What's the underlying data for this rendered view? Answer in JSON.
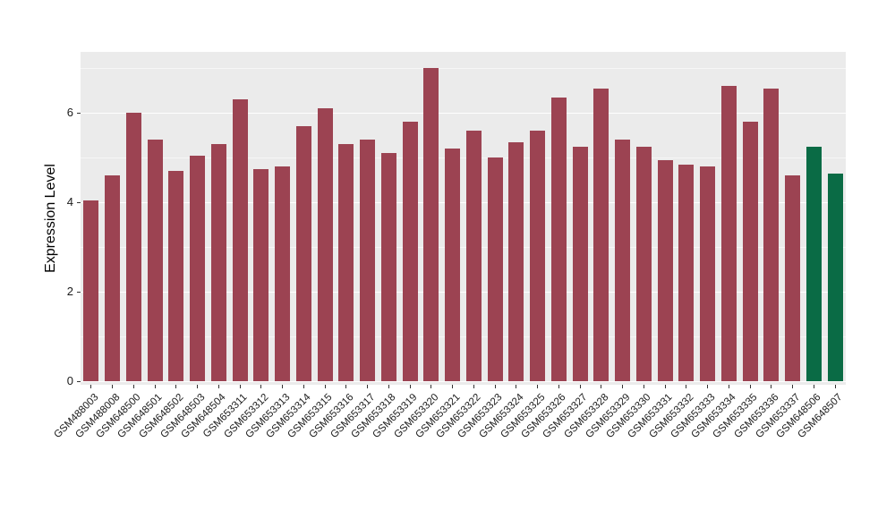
{
  "chart_data": {
    "type": "bar",
    "title": "",
    "xlabel": "",
    "ylabel": "Expression Level",
    "ylim": [
      0,
      7.36
    ],
    "yticks": [
      0,
      2,
      4,
      6
    ],
    "minor_yticks": [
      1,
      3,
      5,
      7
    ],
    "grid": true,
    "legend": "none",
    "panel_background": "#ebebeb",
    "grid_color_major": "#ffffff",
    "grid_color_minor": "rgba(255,255,255,0.55)",
    "bar_color_default": "#9c4352",
    "bar_color_highlight": "#0a6b45",
    "highlight_categories": [
      "GSM648506",
      "GSM648507"
    ],
    "categories": [
      "GSM488003",
      "GSM488008",
      "GSM648500",
      "GSM648501",
      "GSM648502",
      "GSM648503",
      "GSM648504",
      "GSM653311",
      "GSM653312",
      "GSM653313",
      "GSM653314",
      "GSM653315",
      "GSM653316",
      "GSM653317",
      "GSM653318",
      "GSM653319",
      "GSM653320",
      "GSM653321",
      "GSM653322",
      "GSM653323",
      "GSM653324",
      "GSM653325",
      "GSM653326",
      "GSM653327",
      "GSM653328",
      "GSM653329",
      "GSM653330",
      "GSM653331",
      "GSM653332",
      "GSM653333",
      "GSM653334",
      "GSM653335",
      "GSM653336",
      "GSM653337",
      "GSM648506",
      "GSM648507"
    ],
    "values": [
      4.05,
      4.6,
      6.0,
      5.4,
      4.7,
      5.05,
      5.3,
      6.3,
      4.75,
      4.8,
      5.7,
      6.1,
      5.3,
      5.4,
      5.1,
      5.8,
      7.0,
      5.2,
      5.6,
      5.0,
      5.35,
      5.6,
      6.35,
      5.25,
      6.55,
      5.4,
      5.25,
      4.95,
      4.85,
      4.8,
      6.6,
      5.8,
      6.55,
      4.6,
      5.25,
      4.65
    ]
  }
}
